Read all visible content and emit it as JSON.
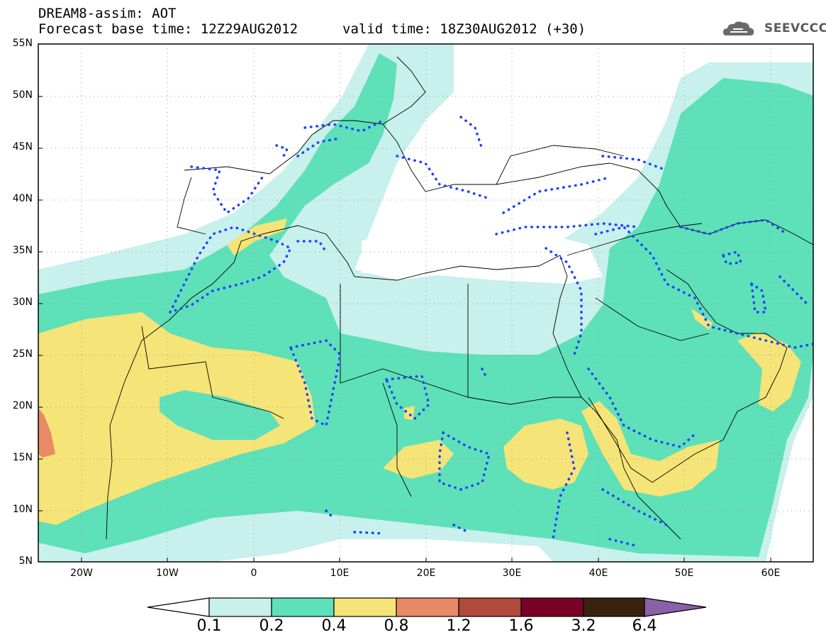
{
  "header": {
    "title_line1": "DREAM8-assim: AOT",
    "title_line2": "Forecast base time: 12Z29AUG2012",
    "valid_time": "valid time: 18Z30AUG2012 (+30)",
    "logo_text": "SEEVCCC"
  },
  "map": {
    "lon_range": [
      -25,
      65
    ],
    "lat_range": [
      5,
      55
    ],
    "lat_labels": [
      "55N",
      "50N",
      "45N",
      "40N",
      "35N",
      "30N",
      "25N",
      "20N",
      "15N",
      "10N",
      "5N"
    ],
    "lon_labels": [
      "20W",
      "10W",
      "0",
      "10E",
      "20E",
      "30E",
      "40E",
      "50E",
      "60E"
    ],
    "grid": "dotted"
  },
  "colorbar": {
    "labels": [
      "0.1",
      "0.2",
      "0.4",
      "0.8",
      "1.2",
      "1.6",
      "3.2",
      "6.4"
    ],
    "colors": [
      "#ffffff",
      "#c8f0ec",
      "#5ee0b8",
      "#f5e477",
      "#e88a65",
      "#b04a3a",
      "#7a0028",
      "#3a2210",
      "#8a60a8"
    ]
  },
  "colors": {
    "c01": "#c8f0ec",
    "c02": "#5ee0b8",
    "c04": "#f5e477",
    "c08": "#e88a65",
    "assim_dots": "#2040ff"
  }
}
